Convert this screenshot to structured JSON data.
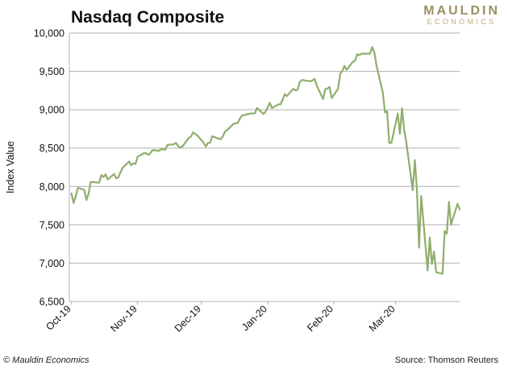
{
  "chart_title": "Nasdaq Composite",
  "logo": {
    "top": "MAULDIN",
    "bottom": "ECONOMICS"
  },
  "footer": {
    "copyright": "© Mauldin Economics",
    "source": "Source: Thomson  Reuters"
  },
  "colors": {
    "line": "#8fae6c",
    "grid": "#b0b0b0",
    "logo": "#9c8f63"
  },
  "chart_data": {
    "type": "line",
    "title": "Nasdaq Composite",
    "xlabel": "",
    "ylabel": "Index Value",
    "ylim": [
      6500,
      10000
    ],
    "yticks": [
      6500,
      7000,
      7500,
      8000,
      8500,
      9000,
      9500,
      10000
    ],
    "ytick_labels": [
      "6,500",
      "7,000",
      "7,500",
      "8,000",
      "8,500",
      "9,000",
      "9,500",
      "10,000"
    ],
    "xticks": [
      "Oct-19",
      "Nov-19",
      "Dec-19",
      "Jan-20",
      "Feb-20",
      "Mar-20"
    ],
    "grid": "horizontal",
    "legend": "none",
    "series": [
      {
        "name": "",
        "x": [
          "2019-10-01",
          "2019-10-02",
          "2019-10-03",
          "2019-10-04",
          "2019-10-07",
          "2019-10-08",
          "2019-10-09",
          "2019-10-10",
          "2019-10-11",
          "2019-10-14",
          "2019-10-15",
          "2019-10-16",
          "2019-10-17",
          "2019-10-18",
          "2019-10-21",
          "2019-10-22",
          "2019-10-23",
          "2019-10-24",
          "2019-10-25",
          "2019-10-28",
          "2019-10-29",
          "2019-10-30",
          "2019-10-31",
          "2019-11-01",
          "2019-11-04",
          "2019-11-05",
          "2019-11-06",
          "2019-11-07",
          "2019-11-08",
          "2019-11-11",
          "2019-11-12",
          "2019-11-13",
          "2019-11-14",
          "2019-11-15",
          "2019-11-18",
          "2019-11-19",
          "2019-11-20",
          "2019-11-21",
          "2019-11-22",
          "2019-11-25",
          "2019-11-26",
          "2019-11-27",
          "2019-11-29",
          "2019-12-02",
          "2019-12-03",
          "2019-12-04",
          "2019-12-05",
          "2019-12-06",
          "2019-12-09",
          "2019-12-10",
          "2019-12-11",
          "2019-12-12",
          "2019-12-13",
          "2019-12-16",
          "2019-12-17",
          "2019-12-18",
          "2019-12-19",
          "2019-12-20",
          "2019-12-23",
          "2019-12-24",
          "2019-12-26",
          "2019-12-27",
          "2019-12-30",
          "2019-12-31",
          "2020-01-02",
          "2020-01-03",
          "2020-01-06",
          "2020-01-07",
          "2020-01-08",
          "2020-01-09",
          "2020-01-10",
          "2020-01-13",
          "2020-01-14",
          "2020-01-15",
          "2020-01-16",
          "2020-01-17",
          "2020-01-21",
          "2020-01-22",
          "2020-01-23",
          "2020-01-24",
          "2020-01-27",
          "2020-01-28",
          "2020-01-29",
          "2020-01-30",
          "2020-01-31",
          "2020-02-03",
          "2020-02-04",
          "2020-02-05",
          "2020-02-06",
          "2020-02-07",
          "2020-02-10",
          "2020-02-11",
          "2020-02-12",
          "2020-02-13",
          "2020-02-14",
          "2020-02-18",
          "2020-02-19",
          "2020-02-20",
          "2020-02-21",
          "2020-02-24",
          "2020-02-25",
          "2020-02-26",
          "2020-02-27",
          "2020-02-28",
          "2020-03-02",
          "2020-03-03",
          "2020-03-04",
          "2020-03-05",
          "2020-03-06",
          "2020-03-09",
          "2020-03-10",
          "2020-03-11",
          "2020-03-12",
          "2020-03-13",
          "2020-03-16",
          "2020-03-17",
          "2020-03-18",
          "2020-03-19",
          "2020-03-20",
          "2020-03-23",
          "2020-03-24",
          "2020-03-25",
          "2020-03-26",
          "2020-03-27",
          "2020-03-30",
          "2020-03-31"
        ],
        "y": [
          7909,
          7785,
          7872,
          7982,
          7956,
          7823,
          7903,
          8057,
          8057,
          8048,
          8148,
          8124,
          8157,
          8090,
          8163,
          8105,
          8120,
          8186,
          8243,
          8325,
          8276,
          8303,
          8292,
          8386,
          8434,
          8434,
          8411,
          8434,
          8475,
          8464,
          8486,
          8482,
          8479,
          8541,
          8550,
          8570,
          8526,
          8506,
          8520,
          8633,
          8648,
          8705,
          8665,
          8568,
          8520,
          8567,
          8571,
          8656,
          8621,
          8617,
          8655,
          8718,
          8735,
          8815,
          8823,
          8827,
          8887,
          8924,
          8945,
          8952,
          8952,
          9022,
          8946,
          8972,
          9092,
          9020,
          9071,
          9068,
          9129,
          9203,
          9178,
          9274,
          9252,
          9259,
          9357,
          9388,
          9370,
          9383,
          9402,
          9314,
          9139,
          9269,
          9276,
          9298,
          9151,
          9273,
          9467,
          9508,
          9572,
          9521,
          9628,
          9638,
          9725,
          9711,
          9731,
          9732,
          9817,
          9751,
          9577,
          9221,
          8966,
          8981,
          8566,
          8567,
          8953,
          8684,
          9018,
          8738,
          8575,
          7950,
          8344,
          7952,
          7201,
          7875,
          6904,
          7335,
          6989,
          7150,
          6880,
          6860,
          7418,
          7384,
          7798,
          7502,
          7774,
          7700
        ]
      }
    ]
  }
}
